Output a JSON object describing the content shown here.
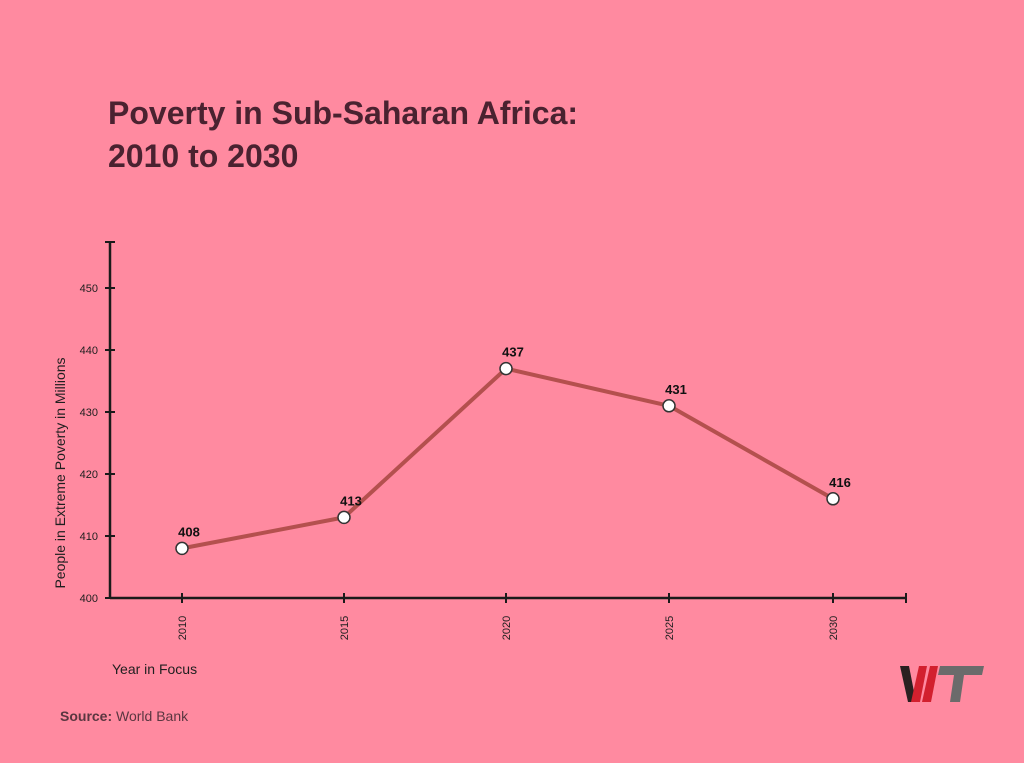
{
  "colors": {
    "background": "#ff8aa0",
    "title": "#4a2230",
    "axis": "#1a1a1a",
    "line": "#b4504e",
    "marker_fill": "#ffffff",
    "logo_dark": "#2a2020",
    "logo_red": "#d2202e",
    "logo_grey": "#6b6b6b"
  },
  "chart_data": {
    "type": "line",
    "title": "Poverty in Sub-Saharan Africa: 2010 to 2030",
    "title_lines": [
      "Poverty in Sub-Saharan Africa:",
      "2010 to 2030"
    ],
    "xlabel": "Year in Focus",
    "ylabel": "People in Extreme Poverty in Millions",
    "x": [
      "2010",
      "2015",
      "2020",
      "2025",
      "2030"
    ],
    "series": [
      {
        "values": [
          408,
          413,
          437,
          431,
          416
        ]
      }
    ],
    "data_labels": [
      "408",
      "413",
      "437",
      "431",
      "416"
    ],
    "yticks": [
      "400",
      "410",
      "420",
      "430",
      "440",
      "450"
    ],
    "ylim": [
      400,
      457
    ],
    "grid": false,
    "legend": "none"
  },
  "source": {
    "label": "Source:",
    "text": "World Bank"
  },
  "logo": {
    "icon": "wt-logo"
  }
}
